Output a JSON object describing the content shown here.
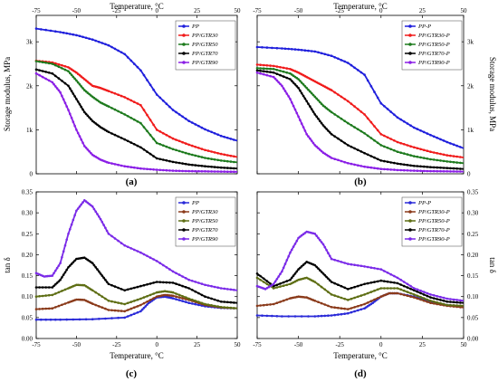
{
  "axes": {
    "top_xlabel": "Temperature, °C",
    "bottom_xlabel": "Temperature, °C",
    "modulus_ylabel": "Storage modulus, MPa",
    "tan_ylabel": "tan δ",
    "x_ticks": [
      "-75",
      "-50",
      "-25",
      "0",
      "25",
      "50"
    ],
    "modulus_ticks": [
      "0",
      "1k",
      "2k",
      "3k"
    ],
    "tan_ticks": [
      "0.00",
      "0.05",
      "0.10",
      "0.15",
      "0.20",
      "0.25",
      "0.30",
      "0.35"
    ]
  },
  "colors": [
    "#1f1fdc",
    "#f01b1b",
    "#1d7a1d",
    "#000000",
    "#8a1ee6"
  ],
  "tan_colors": [
    "#2a2ad8",
    "#8a3a1a",
    "#5e6e14",
    "#000000",
    "#7a2ae8"
  ],
  "chart_data": [
    {
      "panel": "(a)",
      "type": "line",
      "xlim": [
        -75,
        50
      ],
      "ylim": [
        0,
        3600
      ],
      "legend": "top-right",
      "series": [
        {
          "name": "PP",
          "x": [
            -75,
            -60,
            -50,
            -40,
            -30,
            -20,
            -10,
            0,
            10,
            20,
            30,
            40,
            50
          ],
          "values": [
            3300,
            3220,
            3150,
            3050,
            2920,
            2720,
            2350,
            1800,
            1450,
            1200,
            1010,
            860,
            750
          ]
        },
        {
          "name": "PP/GTR30",
          "x": [
            -75,
            -65,
            -55,
            -50,
            -45,
            -40,
            -35,
            -30,
            -20,
            -10,
            0,
            10,
            20,
            30,
            40,
            50
          ],
          "values": [
            2570,
            2530,
            2420,
            2300,
            2150,
            2000,
            1950,
            1880,
            1740,
            1560,
            1000,
            800,
            660,
            540,
            450,
            380
          ]
        },
        {
          "name": "PP/GTR50",
          "x": [
            -75,
            -65,
            -55,
            -50,
            -45,
            -40,
            -35,
            -30,
            -20,
            -10,
            0,
            10,
            20,
            30,
            40,
            50
          ],
          "values": [
            2560,
            2500,
            2330,
            2120,
            1900,
            1750,
            1620,
            1530,
            1350,
            1150,
            700,
            560,
            450,
            360,
            300,
            260
          ]
        },
        {
          "name": "PP/GTR70",
          "x": [
            -75,
            -65,
            -55,
            -50,
            -45,
            -40,
            -35,
            -30,
            -20,
            -10,
            0,
            10,
            20,
            30,
            40,
            50
          ],
          "values": [
            2370,
            2280,
            2000,
            1700,
            1400,
            1200,
            1060,
            950,
            780,
            600,
            350,
            270,
            210,
            170,
            140,
            120
          ]
        },
        {
          "name": "PP/GTR90",
          "x": [
            -75,
            -65,
            -60,
            -55,
            -50,
            -45,
            -40,
            -35,
            -30,
            -20,
            -10,
            0,
            10,
            20,
            30,
            40,
            50
          ],
          "values": [
            2280,
            2080,
            1850,
            1450,
            1000,
            630,
            430,
            320,
            250,
            170,
            120,
            90,
            70,
            60,
            55,
            50,
            45
          ]
        }
      ]
    },
    {
      "panel": "(b)",
      "type": "line",
      "xlim": [
        -75,
        50
      ],
      "ylim": [
        0,
        3600
      ],
      "legend": "top-right",
      "series": [
        {
          "name": "PP-P",
          "x": [
            -75,
            -60,
            -50,
            -40,
            -30,
            -20,
            -10,
            0,
            10,
            20,
            30,
            40,
            50
          ],
          "values": [
            2880,
            2850,
            2820,
            2780,
            2680,
            2520,
            2250,
            1600,
            1280,
            1050,
            880,
            720,
            580
          ]
        },
        {
          "name": "PP/GTR30-P",
          "x": [
            -75,
            -65,
            -55,
            -50,
            -45,
            -40,
            -35,
            -30,
            -20,
            -10,
            0,
            10,
            20,
            30,
            40,
            50
          ],
          "values": [
            2480,
            2450,
            2380,
            2300,
            2200,
            2100,
            2000,
            1900,
            1650,
            1350,
            900,
            720,
            600,
            500,
            420,
            370
          ]
        },
        {
          "name": "PP/GTR50-P",
          "x": [
            -75,
            -65,
            -55,
            -50,
            -45,
            -40,
            -35,
            -30,
            -20,
            -10,
            0,
            10,
            20,
            30,
            40,
            50
          ],
          "values": [
            2400,
            2380,
            2280,
            2150,
            1950,
            1750,
            1550,
            1400,
            1150,
            920,
            650,
            500,
            400,
            330,
            280,
            240
          ]
        },
        {
          "name": "PP/GTR70-P",
          "x": [
            -75,
            -65,
            -55,
            -50,
            -45,
            -40,
            -35,
            -30,
            -20,
            -10,
            0,
            10,
            20,
            30,
            40,
            50
          ],
          "values": [
            2350,
            2300,
            2150,
            1950,
            1650,
            1350,
            1100,
            900,
            650,
            470,
            300,
            230,
            180,
            150,
            130,
            110
          ]
        },
        {
          "name": "PP/GTR90-P",
          "x": [
            -75,
            -65,
            -60,
            -55,
            -50,
            -45,
            -40,
            -35,
            -30,
            -20,
            -10,
            0,
            10,
            20,
            30,
            40,
            50
          ],
          "values": [
            2300,
            2200,
            2000,
            1700,
            1300,
            900,
            650,
            480,
            360,
            240,
            160,
            110,
            85,
            70,
            60,
            55,
            50
          ]
        }
      ]
    },
    {
      "panel": "(c)",
      "type": "line",
      "xlim": [
        -75,
        50
      ],
      "ylim": [
        0,
        0.35
      ],
      "legend": "top-right",
      "series": [
        {
          "name": "PP",
          "x": [
            -75,
            -60,
            -40,
            -20,
            -10,
            -5,
            0,
            5,
            10,
            20,
            30,
            40,
            50
          ],
          "values": [
            0.045,
            0.045,
            0.046,
            0.05,
            0.065,
            0.085,
            0.098,
            0.1,
            0.096,
            0.085,
            0.077,
            0.073,
            0.072
          ]
        },
        {
          "name": "PP/GTR30",
          "x": [
            -75,
            -65,
            -55,
            -50,
            -45,
            -40,
            -30,
            -20,
            -10,
            0,
            5,
            10,
            20,
            30,
            40,
            50
          ],
          "values": [
            0.07,
            0.072,
            0.086,
            0.093,
            0.092,
            0.083,
            0.068,
            0.065,
            0.08,
            0.1,
            0.104,
            0.102,
            0.092,
            0.08,
            0.074,
            0.072
          ]
        },
        {
          "name": "PP/GTR50",
          "x": [
            -75,
            -65,
            -55,
            -50,
            -45,
            -40,
            -30,
            -20,
            -10,
            0,
            5,
            10,
            20,
            30,
            40,
            50
          ],
          "values": [
            0.1,
            0.104,
            0.12,
            0.128,
            0.127,
            0.115,
            0.09,
            0.082,
            0.095,
            0.11,
            0.113,
            0.11,
            0.095,
            0.082,
            0.075,
            0.072
          ]
        },
        {
          "name": "PP/GTR70",
          "x": [
            -75,
            -65,
            -60,
            -55,
            -50,
            -45,
            -40,
            -35,
            -30,
            -20,
            -10,
            0,
            10,
            20,
            30,
            40,
            50
          ],
          "values": [
            0.122,
            0.122,
            0.14,
            0.17,
            0.19,
            0.193,
            0.18,
            0.155,
            0.13,
            0.115,
            0.125,
            0.135,
            0.133,
            0.12,
            0.1,
            0.088,
            0.085
          ]
        },
        {
          "name": "PP/GTR90",
          "x": [
            -75,
            -70,
            -65,
            -60,
            -55,
            -50,
            -45,
            -40,
            -35,
            -30,
            -20,
            -10,
            0,
            10,
            20,
            30,
            40,
            50
          ],
          "values": [
            0.156,
            0.148,
            0.15,
            0.18,
            0.25,
            0.305,
            0.33,
            0.315,
            0.285,
            0.25,
            0.222,
            0.205,
            0.185,
            0.16,
            0.14,
            0.128,
            0.12,
            0.115
          ]
        }
      ]
    },
    {
      "panel": "(d)",
      "type": "line",
      "xlim": [
        -75,
        50
      ],
      "ylim": [
        0,
        0.35
      ],
      "legend": "top-right",
      "series": [
        {
          "name": "PP-P",
          "x": [
            -75,
            -60,
            -40,
            -30,
            -20,
            -10,
            -5,
            0,
            5,
            10,
            20,
            30,
            40,
            50
          ],
          "values": [
            0.055,
            0.053,
            0.053,
            0.055,
            0.06,
            0.072,
            0.085,
            0.1,
            0.108,
            0.108,
            0.1,
            0.088,
            0.08,
            0.077
          ]
        },
        {
          "name": "PP/GTR30-P",
          "x": [
            -75,
            -65,
            -55,
            -50,
            -45,
            -40,
            -30,
            -20,
            -10,
            0,
            5,
            10,
            20,
            30,
            40,
            50
          ],
          "values": [
            0.078,
            0.082,
            0.096,
            0.1,
            0.098,
            0.09,
            0.075,
            0.07,
            0.082,
            0.1,
            0.108,
            0.108,
            0.098,
            0.085,
            0.078,
            0.074
          ]
        },
        {
          "name": "PP/GTR50-P",
          "x": [
            -75,
            -65,
            -55,
            -50,
            -45,
            -40,
            -30,
            -20,
            -10,
            0,
            10,
            20,
            30,
            40,
            50
          ],
          "values": [
            0.145,
            0.12,
            0.13,
            0.14,
            0.145,
            0.135,
            0.105,
            0.092,
            0.105,
            0.12,
            0.12,
            0.105,
            0.09,
            0.08,
            0.078
          ]
        },
        {
          "name": "PP/GTR70-P",
          "x": [
            -75,
            -65,
            -55,
            -50,
            -45,
            -40,
            -35,
            -30,
            -20,
            -10,
            0,
            10,
            20,
            30,
            40,
            50
          ],
          "values": [
            0.155,
            0.125,
            0.14,
            0.165,
            0.183,
            0.175,
            0.155,
            0.135,
            0.118,
            0.13,
            0.138,
            0.132,
            0.115,
            0.098,
            0.088,
            0.085
          ]
        },
        {
          "name": "PP/GTR90-P",
          "x": [
            -75,
            -70,
            -65,
            -60,
            -55,
            -50,
            -45,
            -40,
            -35,
            -30,
            -20,
            -10,
            0,
            10,
            20,
            30,
            40,
            50
          ],
          "values": [
            0.125,
            0.118,
            0.13,
            0.16,
            0.205,
            0.24,
            0.255,
            0.25,
            0.225,
            0.19,
            0.178,
            0.172,
            0.165,
            0.145,
            0.12,
            0.105,
            0.095,
            0.09
          ]
        }
      ]
    }
  ]
}
